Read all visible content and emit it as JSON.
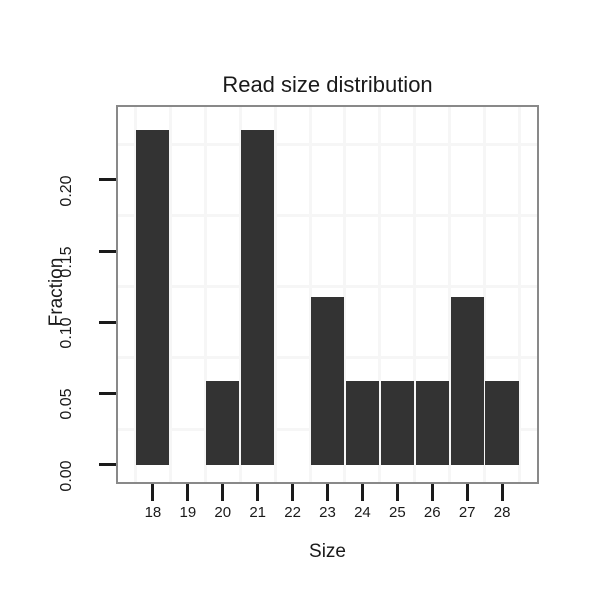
{
  "chart_data": {
    "type": "bar",
    "title": "Read size distribution",
    "xlabel": "Size",
    "ylabel": "Fraction",
    "categories": [
      18,
      19,
      20,
      21,
      22,
      23,
      24,
      25,
      26,
      27,
      28
    ],
    "values": [
      0.2353,
      0,
      0.0588,
      0.2353,
      0,
      0.1176,
      0.0588,
      0.0588,
      0.0588,
      0.1176,
      0.0588
    ],
    "x_tick_labels": [
      "18",
      "19",
      "20",
      "21",
      "22",
      "23",
      "24",
      "25",
      "26",
      "27",
      "28"
    ],
    "y_ticks": [
      0,
      0.05,
      0.1,
      0.15,
      0.2
    ],
    "y_tick_labels": [
      "0.00",
      "0.05",
      "0.10",
      "0.15",
      "0.20"
    ],
    "xlim": [
      17,
      29
    ],
    "ylim": [
      -0.0122,
      0.2512
    ],
    "bar_width": 0.95,
    "x_minor_gridlines": [
      17.5,
      18.5,
      19.5,
      20.5,
      21.5,
      22.5,
      23.5,
      24.5,
      25.5,
      26.5,
      27.5,
      28.5
    ],
    "y_minor_gridlines": [
      0.025,
      0.075,
      0.125,
      0.175,
      0.225
    ],
    "grid": "minor-only",
    "legend": "none",
    "colors": {
      "bar": "#333333",
      "gridline": "#f6f6f6",
      "panel_border": "#898989",
      "tick": "#1a1a1a",
      "text": "#1a1a1a",
      "background": "#ffffff"
    }
  }
}
